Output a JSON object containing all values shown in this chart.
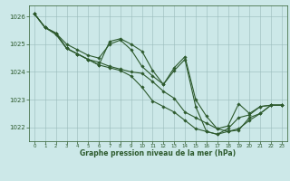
{
  "xlabel": "Graphe pression niveau de la mer (hPa)",
  "xlim": [
    -0.5,
    23.5
  ],
  "ylim": [
    1021.5,
    1026.4
  ],
  "yticks": [
    1022,
    1023,
    1024,
    1025,
    1026
  ],
  "xticks": [
    0,
    1,
    2,
    3,
    4,
    5,
    6,
    7,
    8,
    9,
    10,
    11,
    12,
    13,
    14,
    15,
    16,
    17,
    18,
    19,
    20,
    21,
    22,
    23
  ],
  "background_color": "#cce8e8",
  "grid_color": "#99bbbb",
  "line_color": "#2d5a2d",
  "marker": "D",
  "markersize": 1.8,
  "linewidth": 0.8,
  "series": [
    [
      1026.1,
      1025.6,
      1025.4,
      1025.0,
      1024.8,
      1024.6,
      1024.5,
      1025.0,
      1025.15,
      1024.8,
      1024.2,
      1023.85,
      1023.55,
      1024.15,
      1024.55,
      1023.0,
      1022.4,
      1021.95,
      1022.05,
      1022.85,
      1022.5,
      1022.75,
      1022.8,
      1022.8
    ],
    [
      1026.1,
      1025.6,
      1025.4,
      1024.85,
      1024.65,
      1024.45,
      1024.35,
      1024.2,
      1024.1,
      1024.0,
      1023.95,
      1023.65,
      1023.3,
      1023.05,
      1022.55,
      1022.35,
      1022.15,
      1021.95,
      1021.85,
      1021.9,
      1022.35,
      1022.5,
      1022.8,
      1022.8
    ],
    [
      1026.1,
      1025.6,
      1025.4,
      1024.85,
      1024.65,
      1024.45,
      1024.25,
      1024.15,
      1024.05,
      1023.85,
      1023.45,
      1022.95,
      1022.75,
      1022.55,
      1022.25,
      1021.95,
      1021.85,
      1021.75,
      1021.85,
      1021.95,
      1022.25,
      1022.5,
      1022.8,
      1022.8
    ],
    [
      1026.1,
      1025.6,
      1025.35,
      1024.85,
      1024.65,
      1024.45,
      1024.25,
      1025.1,
      1025.2,
      1025.0,
      1024.75,
      1024.05,
      1023.55,
      1024.05,
      1024.45,
      1022.75,
      1021.85,
      1021.75,
      1021.95,
      1022.35,
      1022.45,
      1022.75,
      1022.8,
      1022.8
    ]
  ]
}
